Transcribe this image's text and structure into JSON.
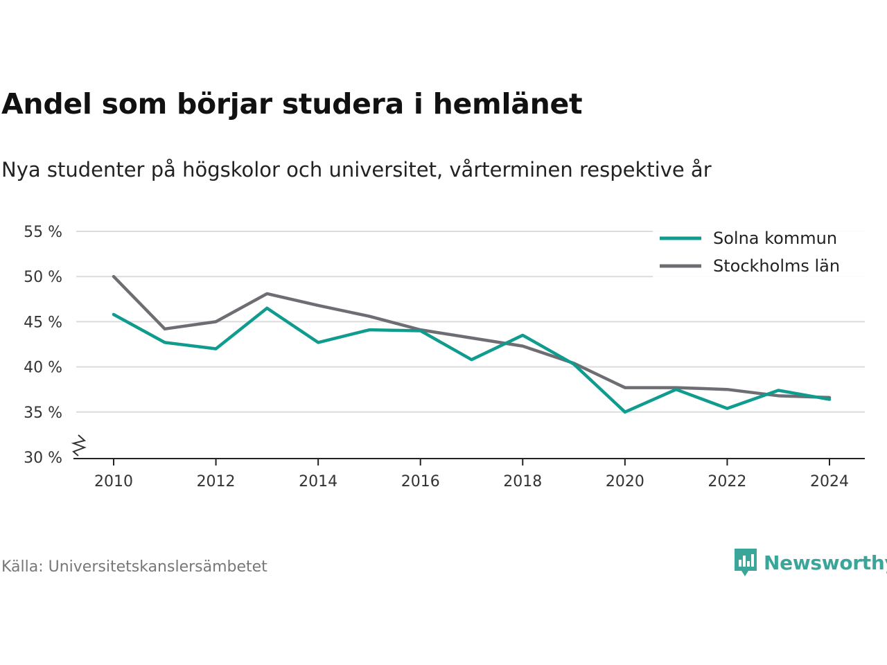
{
  "title": "Andel som börjar studera i hemlänet",
  "subtitle": "Nya studenter på högskolor och universitet, vårterminen respektive år",
  "source": "Källa: Universitetskanslersämbetet",
  "brand": {
    "name": "Newsworthy",
    "color": "#3aa69a",
    "icon": "newsworthy-logo-icon"
  },
  "chart_data": {
    "type": "line",
    "x": [
      2010,
      2011,
      2012,
      2013,
      2014,
      2015,
      2016,
      2017,
      2018,
      2019,
      2020,
      2021,
      2022,
      2023,
      2024
    ],
    "x_ticks": [
      "2010",
      "2012",
      "2014",
      "2016",
      "2018",
      "2020",
      "2022",
      "2024"
    ],
    "y_ticks": [
      30,
      35,
      40,
      45,
      50,
      55
    ],
    "y_tick_labels": [
      "30 %",
      "35 %",
      "40 %",
      "45 %",
      "50 %",
      "55 %"
    ],
    "ylim": [
      30,
      55
    ],
    "y_axis_break": true,
    "grid": true,
    "legend_position": "top-right",
    "series": [
      {
        "name": "Solna kommun",
        "color": "#0f9c8e",
        "values": [
          45.8,
          42.7,
          42.0,
          46.5,
          42.7,
          44.1,
          44.0,
          40.8,
          43.5,
          40.3,
          35.0,
          37.5,
          35.4,
          37.4,
          36.4
        ]
      },
      {
        "name": "Stockholms län",
        "color": "#6d6d74",
        "values": [
          50.0,
          44.2,
          45.0,
          48.1,
          46.8,
          45.6,
          44.1,
          43.2,
          42.3,
          40.4,
          37.7,
          37.7,
          37.5,
          36.8,
          36.6
        ]
      }
    ]
  }
}
